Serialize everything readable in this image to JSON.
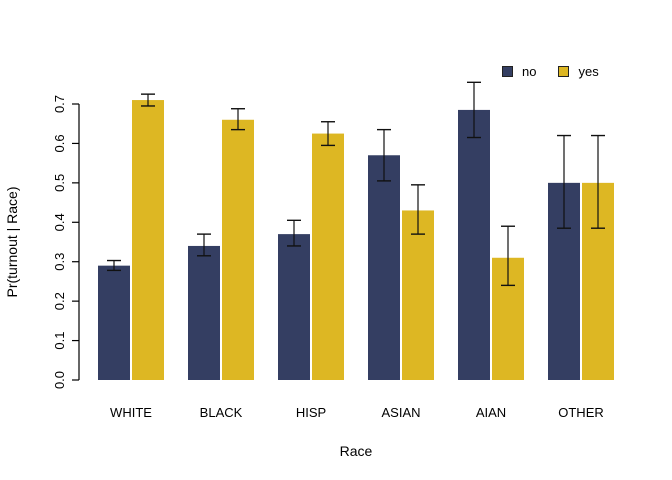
{
  "figure": {
    "background": "#ffffff",
    "axis_color": "#000000",
    "error_bar_color": "#111111"
  },
  "chart_data": {
    "type": "bar",
    "title": "",
    "xlabel": "Race",
    "ylabel": "Pr(turnout | Race)",
    "categories": [
      "WHITE",
      "BLACK",
      "HISP",
      "ASIAN",
      "AIAN",
      "OTHER"
    ],
    "series": [
      {
        "name": "no",
        "color": "#343e62",
        "values": [
          0.29,
          0.34,
          0.37,
          0.57,
          0.685,
          0.5
        ],
        "ci_low": [
          0.278,
          0.315,
          0.34,
          0.505,
          0.615,
          0.385
        ],
        "ci_high": [
          0.303,
          0.37,
          0.405,
          0.635,
          0.755,
          0.62
        ]
      },
      {
        "name": "yes",
        "color": "#ddb723",
        "values": [
          0.71,
          0.66,
          0.625,
          0.43,
          0.31,
          0.5
        ],
        "ci_low": [
          0.695,
          0.635,
          0.595,
          0.37,
          0.24,
          0.385
        ],
        "ci_high": [
          0.725,
          0.688,
          0.655,
          0.495,
          0.39,
          0.62
        ]
      }
    ],
    "ylim": [
      0.0,
      0.7
    ],
    "yticks": [
      0.0,
      0.1,
      0.2,
      0.3,
      0.4,
      0.5,
      0.6,
      0.7
    ],
    "ytick_labels": [
      "0.0",
      "0.1",
      "0.2",
      "0.3",
      "0.4",
      "0.5",
      "0.6",
      "0.7"
    ],
    "grid": false,
    "error_bars": true,
    "legend": {
      "position": "top-right",
      "entries": [
        {
          "label": "no",
          "color": "#343e62"
        },
        {
          "label": "yes",
          "color": "#ddb723"
        }
      ]
    }
  }
}
